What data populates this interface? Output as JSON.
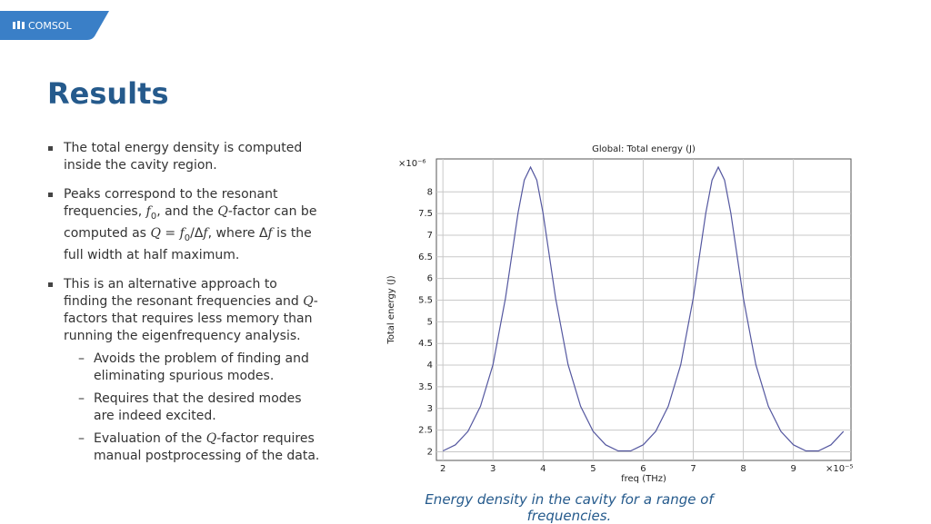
{
  "header": {
    "logo": "COMSOL",
    "title": "Results"
  },
  "bullets": [
    {
      "runs": [
        {
          "text": "The total energy density is computed inside the cavity region."
        }
      ]
    },
    {
      "runs": [
        {
          "text": "Peaks correspond to the resonant frequencies, "
        },
        {
          "text": "f",
          "style": "italic"
        },
        {
          "text": "0",
          "style": "sub"
        },
        {
          "text": ", and the "
        },
        {
          "text": "Q",
          "style": "italic"
        },
        {
          "text": "-factor can be computed as "
        },
        {
          "text": "Q",
          "style": "italic"
        },
        {
          "text": " = "
        },
        {
          "text": "f",
          "style": "italic"
        },
        {
          "text": "0",
          "style": "sub"
        },
        {
          "text": "/Δ"
        },
        {
          "text": "f",
          "style": "italic"
        },
        {
          "text": ", where Δ"
        },
        {
          "text": "f",
          "style": "italic"
        },
        {
          "text": " is the full width at half maximum."
        }
      ]
    },
    {
      "runs": [
        {
          "text": "This is an alternative approach to finding the resonant frequencies and "
        },
        {
          "text": "Q",
          "style": "italic"
        },
        {
          "text": "-factors that requires less memory than running the eigenfrequency analysis."
        }
      ],
      "subitems": [
        {
          "runs": [
            {
              "text": "Avoids the problem of finding and eliminating spurious modes."
            }
          ]
        },
        {
          "runs": [
            {
              "text": "Requires that the desired modes are indeed excited."
            }
          ]
        },
        {
          "runs": [
            {
              "text": "Evaluation of the "
            },
            {
              "text": "Q",
              "style": "italic"
            },
            {
              "text": "-factor requires manual postprocessing of the data."
            }
          ]
        }
      ]
    }
  ],
  "chart_data": {
    "type": "line",
    "title": "Global: Total energy (J)",
    "x_label": "freq (THz)",
    "y_label": "Total energy (J)",
    "x_multiplier": "×10⁻⁵",
    "y_multiplier": "×10⁻⁶",
    "color": "#5558a0",
    "grid": true,
    "x": [
      2,
      2.25,
      2.5,
      2.75,
      3,
      3.25,
      3.5,
      3.625,
      3.75,
      3.875,
      4,
      4.25,
      4.5,
      4.75,
      5,
      5.25,
      5.5,
      5.75,
      6,
      6.25,
      6.5,
      6.75,
      7,
      7.25,
      7.375,
      7.5,
      7.625,
      7.75,
      8,
      8.25,
      8.5,
      8.75,
      9,
      9.25,
      9.5,
      9.75,
      10
    ],
    "values": [
      2.02,
      2.16,
      2.47,
      3.05,
      4.01,
      5.55,
      7.51,
      8.27,
      8.57,
      8.27,
      7.51,
      5.55,
      4.01,
      3.05,
      2.47,
      2.16,
      2.02,
      2.02,
      2.16,
      2.47,
      3.05,
      4.01,
      5.55,
      7.51,
      8.27,
      8.57,
      8.27,
      7.51,
      5.55,
      4.01,
      3.05,
      2.47,
      2.16,
      2.02,
      2.02,
      2.16,
      2.47
    ],
    "xlim": [
      1.87,
      10.15
    ],
    "xticks": [
      2,
      3,
      4,
      5,
      6,
      7,
      8,
      9
    ],
    "ylim": [
      1.8,
      8.76
    ],
    "yticks": [
      2,
      2.5,
      3,
      3.5,
      4,
      4.5,
      5,
      5.5,
      6,
      6.5,
      7,
      7.5,
      8
    ]
  },
  "caption": "Energy density in the cavity for a range of frequencies."
}
